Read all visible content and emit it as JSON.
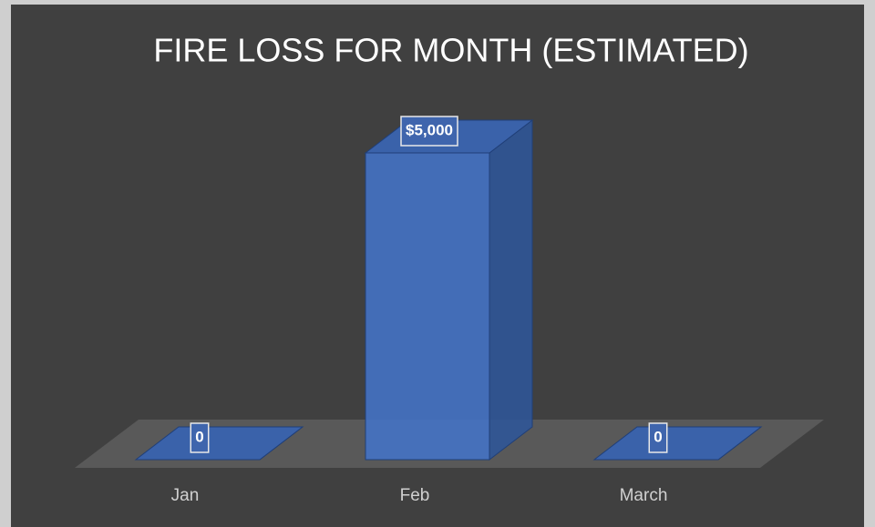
{
  "chart_data": {
    "type": "bar3d",
    "title": "FIRE LOSS FOR MONTH (ESTIMATED)",
    "categories": [
      "Jan",
      "Feb",
      "March"
    ],
    "values": [
      0,
      5000,
      0
    ],
    "value_labels": [
      "0",
      "$5,000",
      "0"
    ],
    "color": "#4472c4"
  }
}
